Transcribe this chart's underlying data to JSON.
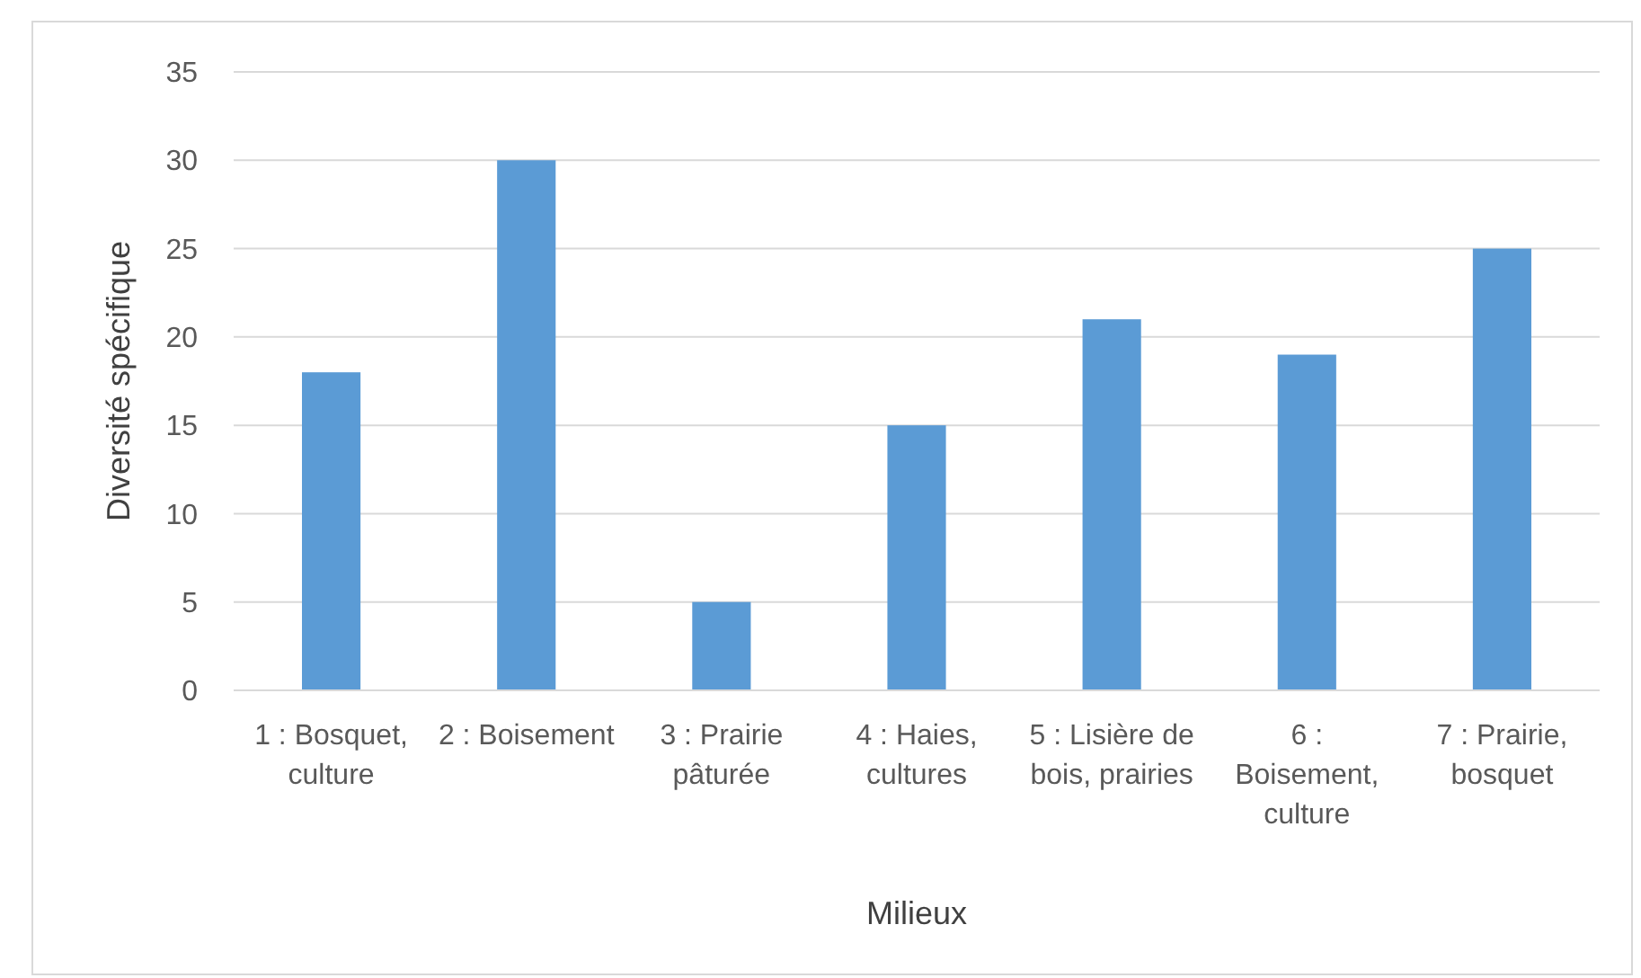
{
  "chart_data": {
    "type": "bar",
    "xlabel": "Milieux",
    "ylabel": "Diversité spécifique",
    "categories": [
      "1 : Bosquet, culture",
      "2 : Boisement",
      "3 : Prairie pâturée",
      "4 : Haies, cultures",
      "5 : Lisière de bois, prairies",
      "6 : Boisement, culture",
      "7 : Prairie, bosquet"
    ],
    "values": [
      18,
      30,
      5,
      15,
      21,
      19,
      25
    ],
    "color": "#5b9bd5",
    "ylim": [
      0,
      35
    ],
    "yticks": [
      0,
      5,
      10,
      15,
      20,
      25,
      30,
      35
    ],
    "grid": "y"
  }
}
